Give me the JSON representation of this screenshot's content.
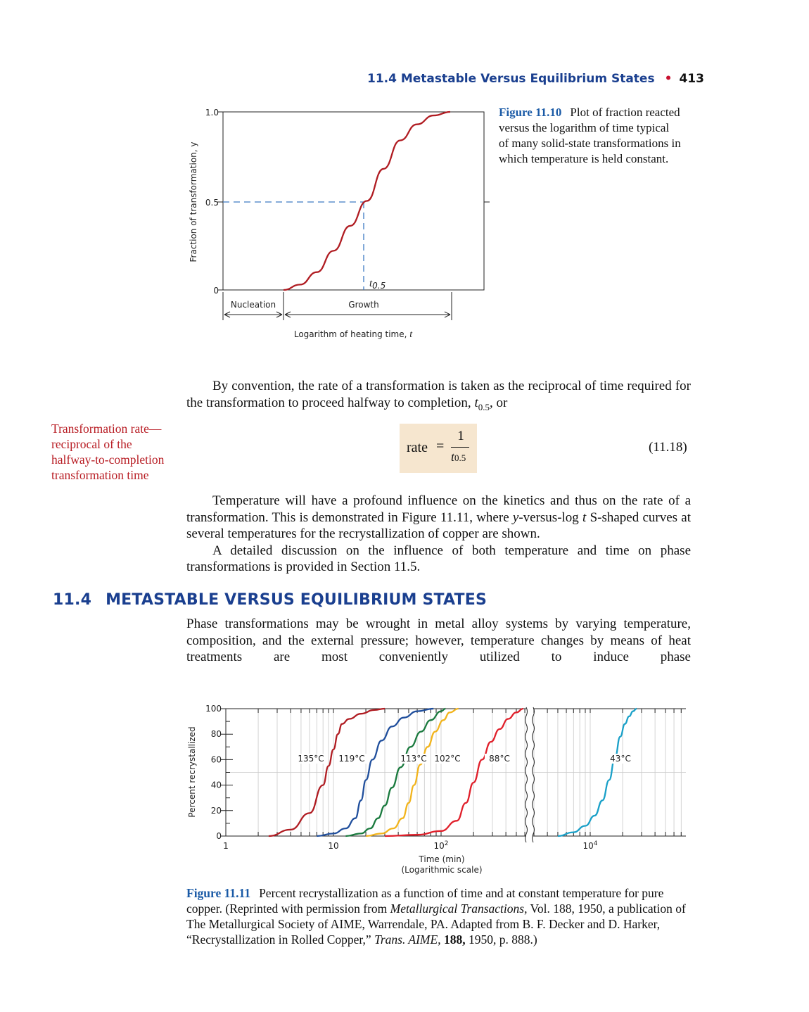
{
  "running_head": {
    "section": "11.4 Metastable Versus Equilibrium States",
    "page": "413"
  },
  "figure_10": {
    "label": "Figure 11.10",
    "caption": "Plot of fraction reacted versus the logarithm of time typical of many solid-state transformations in which temperature is held constant.",
    "chart_data": {
      "type": "line",
      "ylabel": "Fraction of transformation, y",
      "xlabel": "Logarithm of heating time, t",
      "yticks": [
        "1.0",
        "0.5",
        "0"
      ],
      "ylim": [
        0,
        1
      ],
      "series": [
        {
          "x": [
            0,
            0.1,
            0.2,
            0.3,
            0.4,
            0.5,
            0.6,
            0.7,
            0.8,
            0.9,
            1.0
          ],
          "values": [
            0,
            0.03,
            0.1,
            0.22,
            0.36,
            0.5,
            0.68,
            0.84,
            0.93,
            0.98,
            1.0
          ]
        }
      ],
      "annotations": {
        "t_half": "t0.5",
        "nucleation": "Nucleation",
        "growth": "Growth"
      },
      "t_half_y": 0.5
    }
  },
  "paragraph_1": "By convention, the rate of a transformation is taken as the reciprocal of time required for the transformation to proceed halfway to completion, t0.5, or",
  "margin_note": "Transformation rate—reciprocal of the halfway-to-completion transformation time",
  "equation": {
    "lhs": "rate",
    "eq": "=",
    "numerator": "1",
    "denominator": "t0.5",
    "number": "(11.18)"
  },
  "paragraph_2": "Temperature will have a profound influence on the kinetics and thus on the rate of a transformation. This is demonstrated in Figure 11.11, where y-versus-log t S-shaped curves at several temperatures for the recrystallization of copper are shown.",
  "paragraph_3": "A detailed discussion on the influence of both temperature and time on phase transformations is provided in Section 11.5.",
  "section_heading": {
    "number": "11.4",
    "title": "METASTABLE VERSUS EQUILIBRIUM STATES"
  },
  "paragraph_4": "Phase transformations may be wrought in metal alloy systems by varying temperature, composition, and the external pressure; however, temperature changes by means of heat treatments are most conveniently utilized to induce phase",
  "figure_11": {
    "label": "Figure 11.11",
    "caption": "Percent recrystallization as a function of time and at constant temperature for pure copper. (Reprinted with permission from Metallurgical Transactions, Vol. 188, 1950, a publication of The Metallurgical Society of AIME, Warrendale, PA. Adapted from B. F. Decker and D. Harker, “Recrystallization in Rolled Copper,” Trans. AIME, 188, 1950, p. 888.)",
    "chart_data": {
      "type": "line",
      "ylabel": "Percent recrystallized",
      "xlabel": "Time (min)",
      "xlabel_note": "(Logarithmic scale)",
      "xscale": "log",
      "yticks": [
        "0",
        "20",
        "40",
        "60",
        "80",
        "100"
      ],
      "xticks": [
        "1",
        "10",
        "10²",
        "10⁴"
      ],
      "ylim": [
        0,
        100
      ],
      "xlim": [
        1,
        40000
      ],
      "axis_break": true,
      "series": [
        {
          "name": "135°C",
          "color": "#b01c22",
          "x": [
            2.5,
            4,
            6,
            8,
            9,
            10,
            11,
            12,
            14,
            18,
            24,
            30
          ],
          "values": [
            0,
            5,
            18,
            40,
            55,
            68,
            80,
            88,
            92,
            96,
            99,
            100
          ]
        },
        {
          "name": "119°C",
          "color": "#1f4e9c",
          "x": [
            7,
            10,
            13,
            16,
            18,
            20,
            23,
            28,
            35,
            45,
            60,
            85
          ],
          "values": [
            0,
            2,
            6,
            14,
            28,
            44,
            60,
            75,
            86,
            93,
            98,
            100
          ]
        },
        {
          "name": "113°C",
          "color": "#1a7a3e",
          "x": [
            13,
            18,
            22,
            26,
            30,
            35,
            42,
            52,
            65,
            80,
            100,
            110
          ],
          "values": [
            0,
            2,
            6,
            14,
            24,
            38,
            54,
            70,
            82,
            91,
            98,
            100
          ]
        },
        {
          "name": "102°C",
          "color": "#f2b41c",
          "x": [
            20,
            28,
            36,
            44,
            50,
            56,
            64,
            75,
            88,
            105,
            120,
            145
          ],
          "values": [
            0,
            2,
            6,
            14,
            26,
            40,
            56,
            70,
            82,
            91,
            97,
            100
          ]
        },
        {
          "name": "88°C",
          "color": "#e01f2a",
          "x": [
            30,
            60,
            100,
            140,
            170,
            200,
            240,
            290,
            350,
            420,
            500,
            580
          ],
          "values": [
            0,
            1,
            4,
            12,
            26,
            42,
            60,
            74,
            84,
            92,
            97,
            100
          ]
        },
        {
          "name": "43°C",
          "color": "#19a0c8",
          "x": [
            5000,
            7000,
            9000,
            11000,
            13000,
            15000,
            17000,
            19000,
            21000,
            23000,
            25000,
            27000
          ],
          "values": [
            0,
            3,
            8,
            16,
            28,
            44,
            62,
            78,
            88,
            94,
            98,
            100
          ]
        }
      ]
    }
  }
}
